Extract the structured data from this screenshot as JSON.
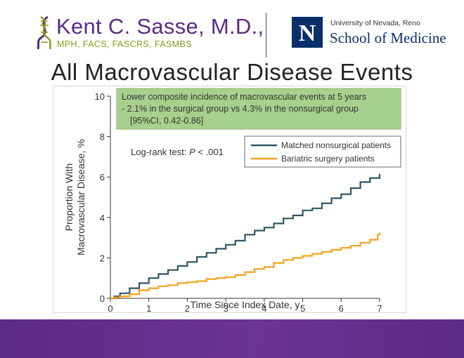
{
  "header": {
    "brand_name": "Kent C. Sasse, M.D.,",
    "credentials": "MPH, FACS, FASCRS, FASMBS",
    "university_logo_letter": "N",
    "university_name": "University of Nevada, Reno",
    "school_name": "School of Medicine"
  },
  "slide": {
    "title": "All Macrovascular Disease Events"
  },
  "colors": {
    "brand_purple": "#5b2a86",
    "credentials_green": "#8a9a1c",
    "unr_navy": "#0a2f6b",
    "nonsurgical_line": "#2e5566",
    "surgical_line": "#f4a21c",
    "callout_fill": "#a8d08d",
    "footer_purple": "#5c2b85"
  },
  "chart_data": {
    "type": "line",
    "xlabel": "Time Since Index Date, y",
    "ylabel_line1": "Proportion With",
    "ylabel_line2": "Macrovascular Disease, %",
    "xlim": [
      0,
      7
    ],
    "ylim": [
      0,
      10
    ],
    "xticks": [
      "0",
      "1",
      "2",
      "3",
      "4",
      "5",
      "6",
      "7"
    ],
    "yticks": [
      "0",
      "2",
      "4",
      "6",
      "8",
      "10"
    ],
    "grid": false,
    "legend_position": "top-right",
    "annotation": {
      "log_rank_prefix": "Log-rank test: ",
      "log_rank_p": "P",
      "log_rank_suffix": " < .001"
    },
    "callout": {
      "line1": "Lower composite incidence of macrovascular events at 5 years",
      "line2": "- 2.1% in the surgical group vs 4.3% in the nonsurgical group",
      "line3": "[95%CI, 0.42-0.86]"
    },
    "series": [
      {
        "name": "Matched nonsurgical patients",
        "color": "#2e5566",
        "x": [
          0,
          0.1,
          0.25,
          0.5,
          0.75,
          1.0,
          1.25,
          1.5,
          1.75,
          2.0,
          2.25,
          2.5,
          2.75,
          3.0,
          3.25,
          3.5,
          3.75,
          4.0,
          4.25,
          4.5,
          4.75,
          5.0,
          5.25,
          5.5,
          5.75,
          6.0,
          6.25,
          6.5,
          6.75,
          7.0
        ],
        "y": [
          0,
          0.1,
          0.25,
          0.5,
          0.75,
          1.0,
          1.2,
          1.4,
          1.6,
          1.8,
          2.05,
          2.25,
          2.45,
          2.65,
          2.85,
          3.15,
          3.35,
          3.5,
          3.7,
          3.95,
          4.1,
          4.35,
          4.45,
          4.7,
          4.95,
          5.15,
          5.45,
          5.75,
          5.95,
          6.15
        ]
      },
      {
        "name": "Bariatric surgery patients",
        "color": "#f4a21c",
        "x": [
          0,
          0.1,
          0.25,
          0.5,
          0.75,
          1.0,
          1.25,
          1.5,
          1.75,
          2.0,
          2.25,
          2.5,
          2.75,
          3.0,
          3.25,
          3.5,
          3.75,
          4.0,
          4.25,
          4.5,
          4.75,
          5.0,
          5.25,
          5.5,
          5.75,
          6.0,
          6.25,
          6.5,
          6.75,
          6.95,
          7.0
        ],
        "y": [
          0,
          0.05,
          0.1,
          0.2,
          0.4,
          0.5,
          0.6,
          0.65,
          0.75,
          0.8,
          0.85,
          0.95,
          1.0,
          1.05,
          1.15,
          1.3,
          1.45,
          1.55,
          1.75,
          1.9,
          2.0,
          2.1,
          2.2,
          2.3,
          2.4,
          2.5,
          2.6,
          2.75,
          2.9,
          3.15,
          3.25
        ]
      }
    ]
  }
}
